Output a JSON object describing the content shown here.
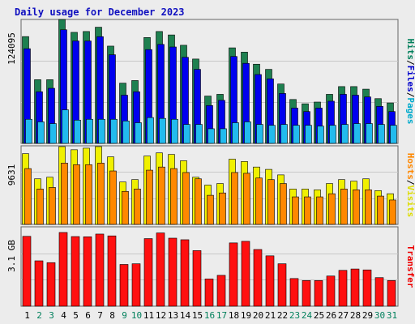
{
  "title": "Daily usage for December 2023",
  "chart_data": {
    "type": "bar",
    "title": "Daily usage for December 2023",
    "categories": [
      "1",
      "2",
      "3",
      "4",
      "5",
      "6",
      "7",
      "8",
      "9",
      "10",
      "11",
      "12",
      "13",
      "14",
      "15",
      "16",
      "17",
      "18",
      "19",
      "20",
      "21",
      "22",
      "23",
      "24",
      "25",
      "26",
      "27",
      "28",
      "29",
      "30",
      "31"
    ],
    "weekend_days": [
      "2",
      "3",
      "9",
      "10",
      "16",
      "17",
      "23",
      "24",
      "30",
      "31"
    ],
    "panels": [
      {
        "id": "hits-files-pages",
        "y_tick": "124095",
        "ylim": [
          0,
          144000
        ],
        "right_label": [
          {
            "text": "Hits",
            "color": "#00805c"
          },
          {
            "text": "/",
            "color": "#000000"
          },
          {
            "text": "Files",
            "color": "#0000cc"
          },
          {
            "text": "/",
            "color": "#000000"
          },
          {
            "text": "Pages",
            "color": "#00aacc"
          }
        ],
        "series": [
          {
            "name": "Hits",
            "color": "#1e8050",
            "values": [
              124095,
              74000,
              74000,
              144000,
              129000,
              130000,
              135000,
              113000,
              70000,
              73000,
              123000,
              130000,
              126000,
              114000,
              98000,
              55000,
              57000,
              111000,
              106000,
              92000,
              86000,
              69000,
              51000,
              46000,
              48000,
              57000,
              66000,
              66000,
              63000,
              52000,
              47000
            ]
          },
          {
            "name": "Files",
            "color": "#0000ee",
            "values": [
              110000,
              60000,
              64000,
              132000,
              119000,
              119000,
              124000,
              103000,
              56000,
              60000,
              109000,
              115000,
              112000,
              100000,
              86000,
              44000,
              50000,
              101000,
              93000,
              80000,
              75000,
              58000,
              41000,
              37000,
              41000,
              49000,
              57000,
              56000,
              54000,
              43000,
              37000
            ]
          },
          {
            "name": "Pages",
            "color": "#22bbee",
            "values": [
              28000,
              25000,
              23000,
              39000,
              27000,
              28000,
              28000,
              28000,
              26000,
              24000,
              30000,
              29000,
              28000,
              22000,
              22000,
              17000,
              17000,
              24000,
              25000,
              22000,
              21000,
              22000,
              21000,
              21000,
              20000,
              21000,
              22000,
              23000,
              23000,
              22000,
              21000
            ]
          }
        ]
      },
      {
        "id": "visits-sites",
        "y_tick": "9631",
        "ylim": [
          0,
          10000
        ],
        "right_label": [
          {
            "text": "Hosts",
            "color": "#ff8800"
          },
          {
            "text": "/",
            "color": "#000000"
          },
          {
            "text": "Visits",
            "color": "#dddd00"
          }
        ],
        "series": [
          {
            "name": "Visits",
            "color": "#f0f000",
            "values": [
              9000,
              5800,
              6000,
              9900,
              9500,
              9700,
              9900,
              8600,
              5400,
              5700,
              8700,
              9100,
              8900,
              8100,
              6000,
              5000,
              5200,
              8300,
              8000,
              7300,
              7000,
              6300,
              4500,
              4500,
              4400,
              5200,
              5700,
              5500,
              5800,
              4300,
              3900
            ]
          },
          {
            "name": "Hosts",
            "color": "#ff8800",
            "values": [
              7100,
              4500,
              4700,
              7800,
              7600,
              7600,
              7800,
              6800,
              4200,
              4500,
              6900,
              7300,
              7100,
              6600,
              5800,
              3700,
              4000,
              6600,
              6500,
              5900,
              5700,
              5200,
              3500,
              3500,
              3500,
              3900,
              4500,
              4400,
              4400,
              3600,
              3100
            ]
          }
        ]
      },
      {
        "id": "kbytes",
        "y_tick": "3.1 GB",
        "ylim": [
          0,
          3500000
        ],
        "right_label": [
          {
            "text": "Transfer",
            "color": "#ee0000"
          }
        ],
        "series": [
          {
            "name": "Transfer",
            "color": "#ff1010",
            "values": [
              3080000,
              2000000,
              1920000,
              3250000,
              3070000,
              3060000,
              3180000,
              3100000,
              1840000,
              1870000,
              2980000,
              3230000,
              3000000,
              2930000,
              2450000,
              1200000,
              1360000,
              2790000,
              2860000,
              2500000,
              2220000,
              1870000,
              1220000,
              1130000,
              1130000,
              1330000,
              1580000,
              1640000,
              1600000,
              1260000,
              1130000
            ]
          }
        ]
      }
    ],
    "colors": {
      "background": "#ececec",
      "plot_background": "#ececec",
      "gridline": "#c8c8c8",
      "title": "#1010c0",
      "weekday_label": "#000000",
      "weekend_label": "#00805c"
    }
  }
}
